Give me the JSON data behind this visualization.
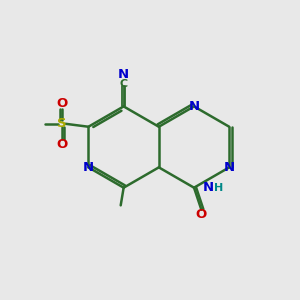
{
  "background_color": "#e8e8e8",
  "bond_color": "#2d6b2d",
  "bond_width": 1.8,
  "atom_colors": {
    "N": "#0000cc",
    "O": "#cc0000",
    "S": "#aaaa00",
    "C": "#2d6b2d",
    "H": "#008888"
  },
  "figsize": [
    3.0,
    3.0
  ],
  "dpi": 100
}
